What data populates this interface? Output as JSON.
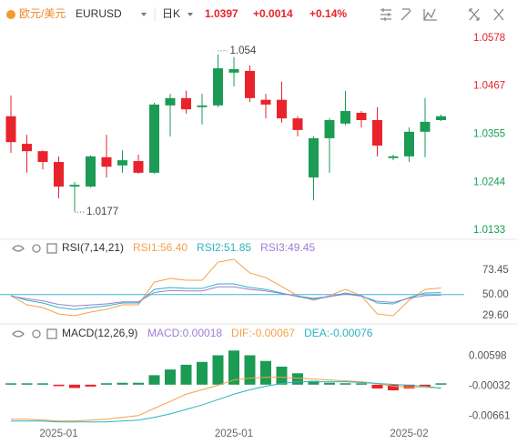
{
  "header": {
    "symbol_name": "欧元/美元",
    "symbol": "EURUSD",
    "period": "日K",
    "price": "1.0397",
    "change": "+0.0014",
    "change_pct": "+0.14%"
  },
  "chart_data": [
    {
      "type": "candlestick",
      "categories": [
        null,
        null,
        null,
        "2025-01",
        null,
        null,
        null,
        null,
        null,
        null,
        null,
        null,
        null,
        null,
        "2025-01",
        null,
        null,
        null,
        null,
        null,
        null,
        null,
        null,
        null,
        null,
        "2025-02",
        null,
        null
      ],
      "open": [
        1.0397,
        1.0333,
        1.0316,
        1.0291,
        1.0234,
        1.0234,
        1.0302,
        1.0283,
        1.0293,
        1.0266,
        1.0422,
        1.0439,
        1.0418,
        1.0422,
        1.0498,
        1.0502,
        1.0435,
        1.0435,
        1.0392,
        1.0255,
        1.0346,
        1.038,
        1.0405,
        1.0388,
        1.03,
        1.0304,
        1.0361,
        1.0388
      ],
      "high": [
        1.0445,
        1.0354,
        1.0318,
        1.0304,
        1.0245,
        1.0306,
        1.0354,
        1.0318,
        1.0308,
        1.0428,
        1.0449,
        1.0456,
        1.0449,
        1.054,
        1.0534,
        1.0515,
        1.0449,
        1.0477,
        1.0397,
        1.035,
        1.0392,
        1.0456,
        1.0409,
        1.0418,
        1.0308,
        1.0371,
        1.0439,
        1.0401
      ],
      "low": [
        1.0312,
        1.0266,
        1.0274,
        1.0207,
        1.0177,
        1.0232,
        1.0255,
        1.0266,
        1.0264,
        1.0264,
        1.035,
        1.0403,
        1.0378,
        1.0418,
        1.0466,
        1.043,
        1.0392,
        1.0382,
        1.035,
        1.0202,
        1.0266,
        1.0376,
        1.0371,
        1.0304,
        1.0295,
        1.0291,
        1.0302,
        1.0386
      ],
      "close": [
        1.0337,
        1.0316,
        1.0291,
        1.0234,
        1.0238,
        1.0304,
        1.028,
        1.0295,
        1.0266,
        1.0424,
        1.0439,
        1.0413,
        1.0422,
        1.0508,
        1.0506,
        1.0439,
        1.0424,
        1.0392,
        1.0365,
        1.0346,
        1.0388,
        1.0409,
        1.0388,
        1.0329,
        1.0304,
        1.0361,
        1.0384,
        1.0397
      ],
      "up_color": "#1c9b55",
      "down_color": "#e8232c",
      "ylim": [
        1.0114,
        1.0603
      ],
      "yticks": [
        1.0578,
        1.0467,
        1.0355,
        1.0244,
        1.0133
      ]
    },
    {
      "type": "line",
      "title": "RSI(7,14,21)",
      "series": [
        {
          "name": "RSI1:56.40",
          "color": "#f5a04a",
          "values": [
            48.9,
            40.1,
            37.5,
            31.3,
            29.6,
            33.1,
            35.7,
            40.1,
            40.1,
            62.0,
            65.6,
            63.8,
            63.8,
            81.3,
            84.0,
            70.8,
            66.4,
            57.7,
            48.9,
            44.5,
            48.9,
            55.0,
            48.9,
            31.3,
            29.6,
            44.5,
            55.0,
            56.4
          ]
        },
        {
          "name": "RSI2:51.85",
          "color": "#2bb3c0",
          "values": [
            48.9,
            44.5,
            41.9,
            37.5,
            35.7,
            37.5,
            39.2,
            41.9,
            41.9,
            55.0,
            56.8,
            55.9,
            55.9,
            60.3,
            60.3,
            56.8,
            55.0,
            51.5,
            48.0,
            45.4,
            48.0,
            51.5,
            48.9,
            41.9,
            41.0,
            47.1,
            51.5,
            51.85
          ]
        },
        {
          "name": "RSI3:49.45",
          "color": "#9b7fd4",
          "values": [
            48.5,
            46.0,
            44.0,
            40.5,
            39.0,
            40.0,
            41.0,
            43.0,
            43.0,
            52.0,
            54.0,
            53.5,
            53.5,
            57.5,
            57.5,
            55.0,
            53.5,
            51.0,
            48.5,
            46.5,
            48.0,
            50.5,
            48.5,
            43.5,
            42.5,
            46.5,
            49.0,
            49.45
          ]
        }
      ],
      "hline": 50,
      "hline_color": "#3fb6d6",
      "ylim": [
        22.6,
        88.4
      ],
      "yticks": [
        73.45,
        {
          "value": 50,
          "label": "50.00"
        },
        {
          "value": 29.6,
          "label": "29.60"
        }
      ]
    },
    {
      "type": "macd",
      "title": "MACD(12,26,9)",
      "histogram": {
        "name": "MACD:0.00018",
        "color": "#9b7fd4",
        "up_color": "#1c9b55",
        "down_color": "#e8232c",
        "values": [
          0.0002,
          0.0002,
          0.0001,
          -0.0003,
          -0.0007,
          -0.0004,
          0.0003,
          0.0004,
          0.0004,
          0.002,
          0.0032,
          0.0042,
          0.0048,
          0.0062,
          0.0072,
          0.0062,
          0.005,
          0.0038,
          0.0024,
          0.0008,
          0.0004,
          0.0003,
          0.0001,
          -0.0008,
          -0.0012,
          -0.0008,
          -0.0004,
          0.00018
        ]
      },
      "series": [
        {
          "name": "DIF:-0.00067",
          "color": "#f5a04a",
          "values": [
            -0.00728,
            -0.00728,
            -0.00746,
            -0.00765,
            -0.00765,
            -0.00746,
            -0.00728,
            -0.0069,
            -0.00652,
            -0.005,
            -0.00352,
            -0.00201,
            -0.00107,
            -0.00013,
            0.001,
            0.00137,
            0.00156,
            0.00156,
            0.00137,
            0.00118,
            0.001,
            0.00081,
            0.00062,
            0.00024,
            -0.00032,
            -0.0005,
            -0.0006,
            -0.00067
          ]
        },
        {
          "name": "DEA:-0.00076",
          "color": "#2bb3c0",
          "values": [
            -0.00765,
            -0.00765,
            -0.00765,
            -0.00784,
            -0.00784,
            -0.00784,
            -0.00784,
            -0.00765,
            -0.00746,
            -0.0069,
            -0.00615,
            -0.00521,
            -0.00427,
            -0.00314,
            -0.00201,
            -0.00107,
            -0.00032,
            0.00024,
            0.00062,
            0.00062,
            0.00062,
            0.00062,
            0.00043,
            0.00024,
            6e-05,
            -0.00013,
            -0.00032,
            -0.00076
          ]
        }
      ],
      "ylim": [
        -0.00905,
        0.00974
      ],
      "yticks": [
        0.00598,
        -0.00032,
        -0.00661
      ]
    }
  ]
}
